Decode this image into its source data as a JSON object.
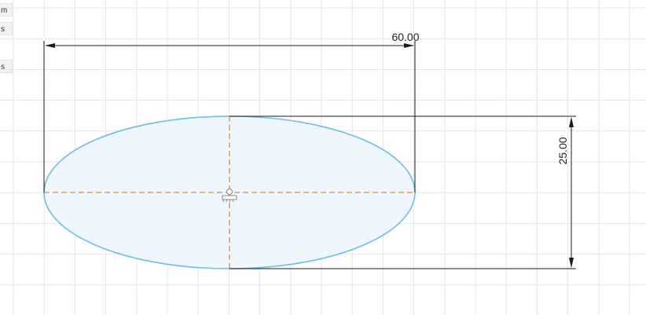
{
  "side_panel": {
    "items": [
      {
        "label": "m"
      },
      {
        "label": "s"
      },
      {
        "label": "s"
      }
    ]
  },
  "sketch": {
    "dimensions": {
      "width_label": "60.00",
      "height_label": "25.00"
    },
    "colors": {
      "grid": "#e6e6e6",
      "ellipse_stroke": "#6bbfe0",
      "ellipse_fill": "#eef7fd",
      "construction": "#e08a3c",
      "dimension": "#1a1a1a",
      "center_glyph": "#888888"
    },
    "icons": {
      "center_point": "circle-point-icon",
      "constraint": "fix-constraint-icon"
    }
  }
}
